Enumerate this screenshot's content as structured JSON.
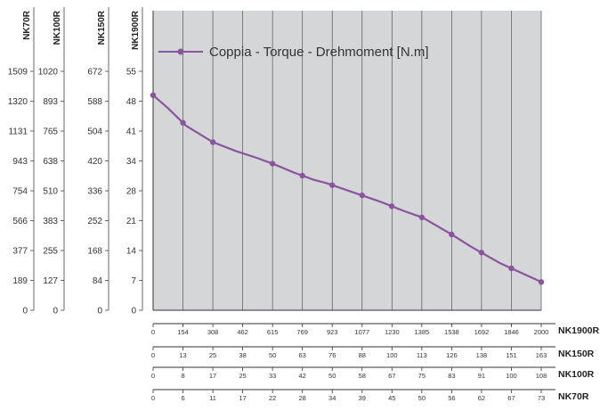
{
  "chart_data": {
    "type": "line",
    "title": "",
    "legend": {
      "label": "Coppia - Torque - Drehmoment [N.m]",
      "placement": "top-left"
    },
    "grid": {
      "vertical": true,
      "horizontal": false
    },
    "colors": {
      "series": "#8a559e",
      "plot_bg": "#d5d6d8",
      "grid": "#555555"
    },
    "y_axes": [
      {
        "name": "NK70R",
        "ticks": [
          "1509",
          "1320",
          "1131",
          "943",
          "754",
          "566",
          "377",
          "189",
          "0"
        ]
      },
      {
        "name": "NK100R",
        "ticks": [
          "1020",
          "893",
          "765",
          "638",
          "510",
          "383",
          "255",
          "127",
          "0"
        ]
      },
      {
        "name": "NK150R",
        "ticks": [
          "672",
          "588",
          "504",
          "420",
          "336",
          "252",
          "168",
          "84",
          "0"
        ]
      },
      {
        "name": "NK1900R",
        "ticks": [
          "55",
          "48",
          "41",
          "34",
          "28",
          "21",
          "14",
          "7",
          "0"
        ]
      }
    ],
    "primary_y": {
      "ylim": [
        0,
        55
      ]
    },
    "x_axes": [
      {
        "name": "NK1900R",
        "ticks": [
          "0",
          "154",
          "308",
          "462",
          "615",
          "769",
          "923",
          "1077",
          "1230",
          "1385",
          "1538",
          "1692",
          "1846",
          "2000"
        ]
      },
      {
        "name": "NK150R",
        "ticks": [
          "0",
          "13",
          "25",
          "38",
          "50",
          "63",
          "76",
          "88",
          "100",
          "113",
          "126",
          "138",
          "151",
          "163"
        ]
      },
      {
        "name": "NK100R",
        "ticks": [
          "0",
          "8",
          "17",
          "25",
          "33",
          "42",
          "50",
          "58",
          "67",
          "75",
          "83",
          "91",
          "100",
          "108"
        ]
      },
      {
        "name": "NK70R",
        "ticks": [
          "0",
          "6",
          "11",
          "17",
          "22",
          "28",
          "34",
          "39",
          "45",
          "50",
          "56",
          "62",
          "67",
          "73"
        ]
      }
    ],
    "primary_x": {
      "xlim": [
        0,
        2000
      ]
    },
    "series": [
      {
        "x": [
          0,
          77,
          169,
          308,
          430,
          540,
          630,
          725,
          830,
          890,
          1080,
          1170,
          1295,
          1390,
          1540,
          1640,
          1790,
          2000
        ],
        "y": [
          49.5,
          46.5,
          42.5,
          38.7,
          36.6,
          35.0,
          33.5,
          31.7,
          30.0,
          29.3,
          26.4,
          25.0,
          22.8,
          21.3,
          17.4,
          14.6,
          10.8,
          6.5
        ]
      }
    ],
    "marker_x": [
      0,
      154,
      308,
      615,
      769,
      923,
      1077,
      1230,
      1385,
      1538,
      1692,
      1846,
      2000
    ]
  }
}
